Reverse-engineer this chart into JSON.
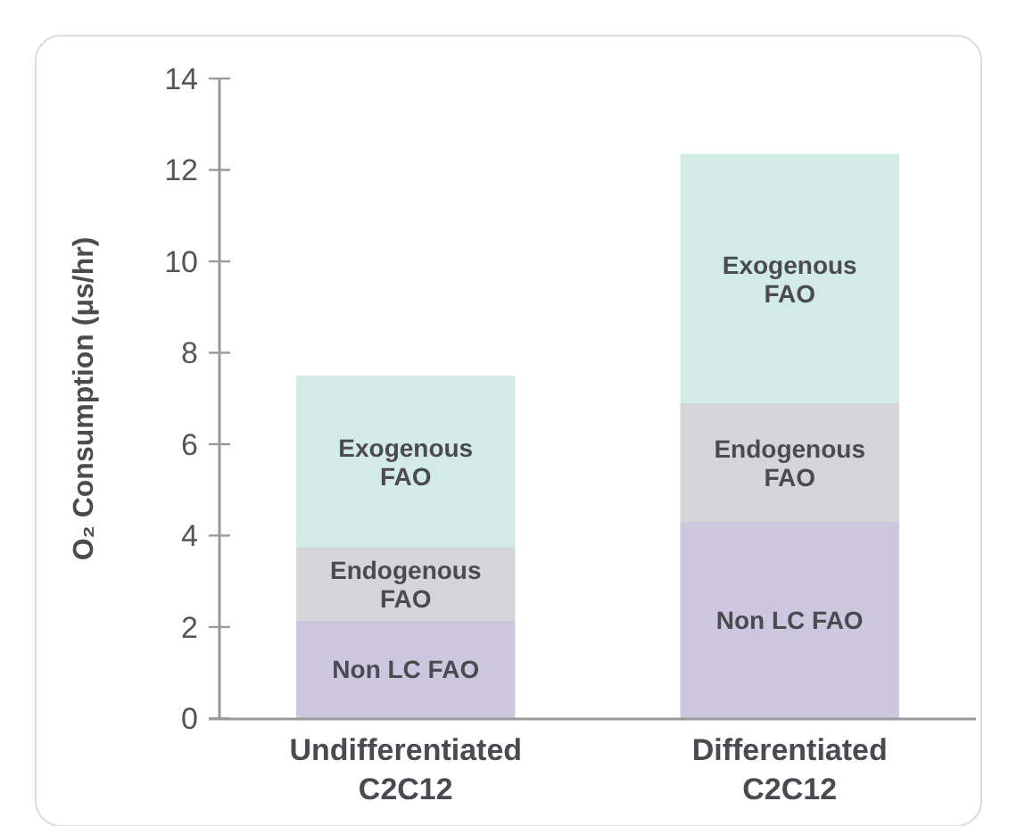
{
  "chart_data": {
    "type": "bar",
    "stacked": true,
    "ylabel": "O₂ Consumption (μs/hr)",
    "categories": [
      "Undifferentiated\nC2C12",
      "Differentiated\nC2C12"
    ],
    "series": [
      {
        "name": "Non LC FAO",
        "color": "#cdc6df",
        "values": [
          2.15,
          4.3
        ]
      },
      {
        "name": "Endogenous\nFAO",
        "color": "#d5d5d7",
        "values": [
          1.6,
          2.6
        ]
      },
      {
        "name": "Exogenous\nFAO",
        "color": "#d2ebe7",
        "values": [
          3.75,
          5.45
        ]
      }
    ],
    "ylim": [
      0,
      14
    ],
    "yticks": [
      0,
      2,
      4,
      6,
      8,
      10,
      12,
      14
    ],
    "grid": false
  }
}
